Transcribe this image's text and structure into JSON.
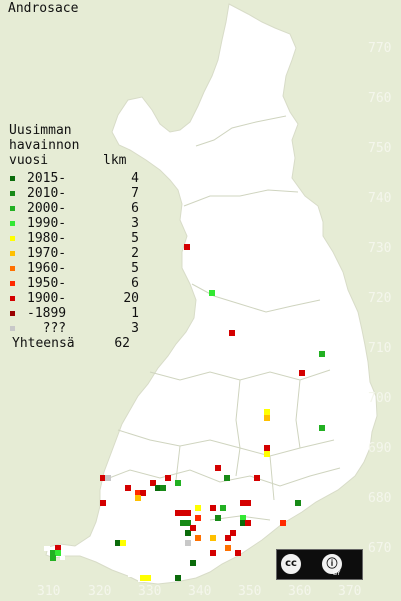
{
  "title": "Androsace",
  "legend": {
    "heading": [
      "Uusimman",
      "havainnon"
    ],
    "col_year": "vuosi",
    "col_count": "lkm",
    "rows": [
      {
        "label": "2015-",
        "count": "4",
        "color": "#0b6b0b"
      },
      {
        "label": "2010-",
        "count": "7",
        "color": "#178a17"
      },
      {
        "label": "2000-",
        "count": "6",
        "color": "#22b022"
      },
      {
        "label": "1990-",
        "count": "3",
        "color": "#33e833"
      },
      {
        "label": "1980-",
        "count": "5",
        "color": "#ffff00"
      },
      {
        "label": "1970-",
        "count": "2",
        "color": "#ffc000"
      },
      {
        "label": "1960-",
        "count": "5",
        "color": "#ff7000"
      },
      {
        "label": "1950-",
        "count": "6",
        "color": "#ff2a00"
      },
      {
        "label": "1900-",
        "count": "20",
        "color": "#d40000"
      },
      {
        "label": "-1899",
        "count": "1",
        "color": "#9a0000"
      },
      {
        "label": "  ???",
        "count": "3",
        "color": "#c8c8c8"
      }
    ],
    "total_label": "Yhteensä",
    "total_count": "62"
  },
  "axes": {
    "y_ticks": [
      "770",
      "760",
      "750",
      "740",
      "730",
      "720",
      "710",
      "700",
      "690",
      "680",
      "670"
    ],
    "x_ticks": [
      "310",
      "320",
      "330",
      "340",
      "350",
      "360",
      "370"
    ]
  },
  "license": {
    "cc": "cc",
    "by_symbol": "ⓘ",
    "by": "BY"
  },
  "colors": {
    "background": "#e6ecd5",
    "land": "#ffffff",
    "border": "#c9ceb8"
  }
}
